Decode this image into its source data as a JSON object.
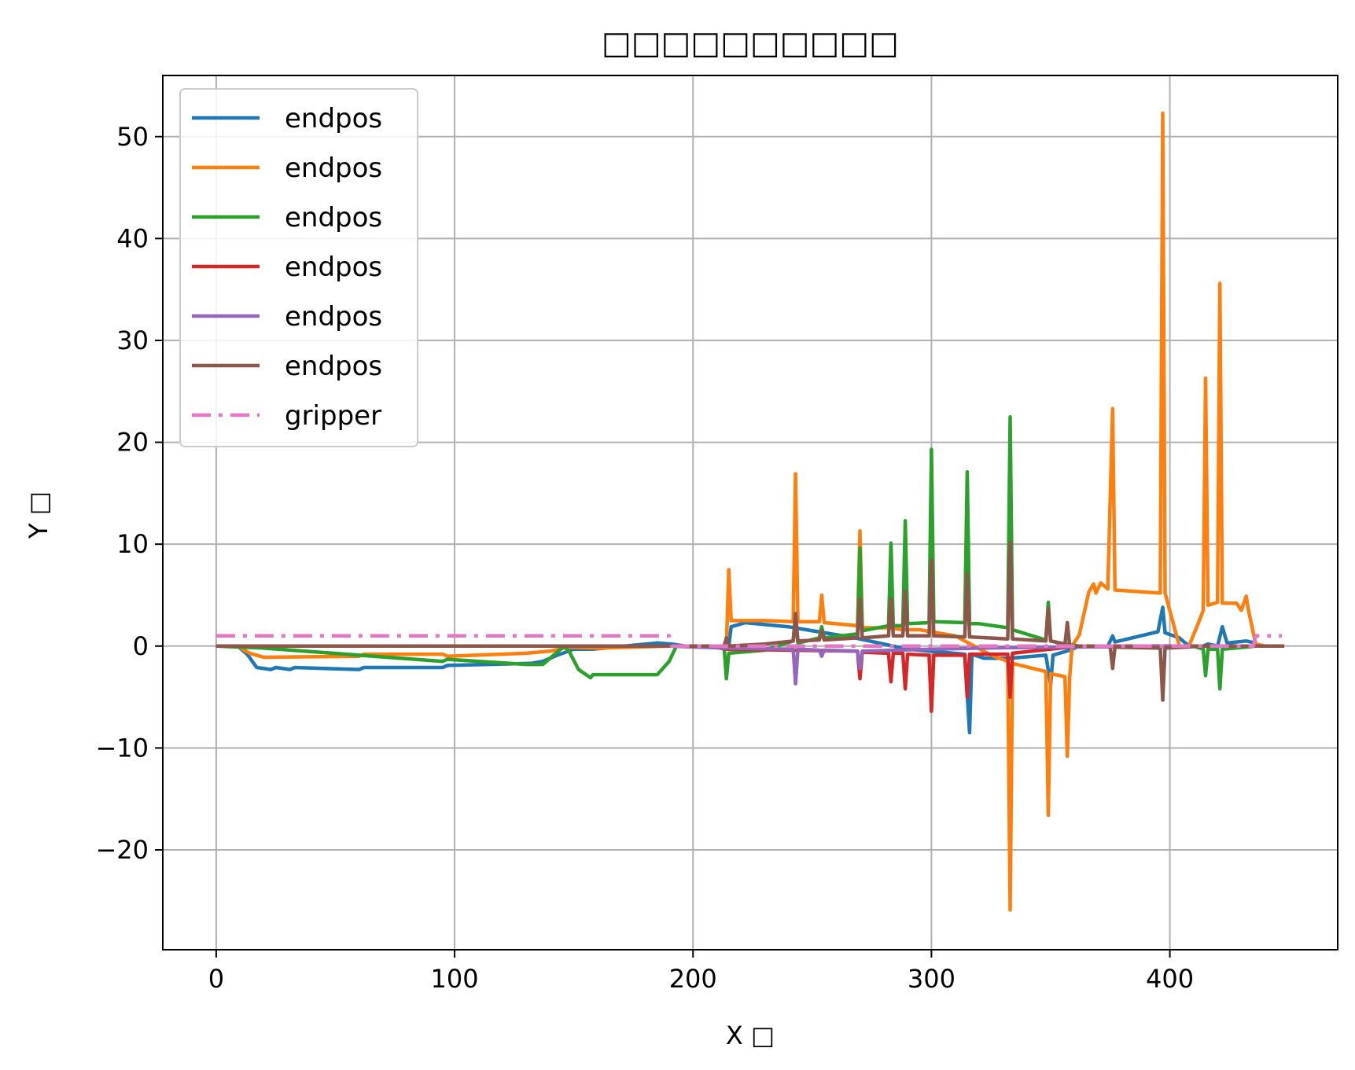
{
  "chart_data": {
    "type": "line",
    "title": "□□□□□□□□□□",
    "xlabel": "X □",
    "ylabel": "Y □",
    "xlim": [
      -22.4,
      470.4
    ],
    "ylim": [
      -29.8,
      56.0
    ],
    "xticks": [
      0,
      100,
      200,
      300,
      400
    ],
    "yticks": [
      -20,
      -10,
      0,
      10,
      20,
      30,
      40,
      50
    ],
    "xtick_labels": [
      "0",
      "100",
      "200",
      "300",
      "400"
    ],
    "ytick_labels": [
      "−20",
      "−10",
      "0",
      "10",
      "20",
      "30",
      "40",
      "50"
    ],
    "grid": true,
    "legend_position": "upper-left",
    "series": [
      {
        "name": "endpos",
        "color": "#1f77b4",
        "style": "solid",
        "points": [
          [
            0,
            0
          ],
          [
            9,
            0
          ],
          [
            13,
            -0.8
          ],
          [
            17,
            -2.1
          ],
          [
            23,
            -2.3
          ],
          [
            25,
            -2.1
          ],
          [
            31,
            -2.3
          ],
          [
            33,
            -2.1
          ],
          [
            60,
            -2.3
          ],
          [
            62,
            -2.1
          ],
          [
            95,
            -2.1
          ],
          [
            97,
            -1.9
          ],
          [
            132,
            -1.7
          ],
          [
            137,
            -1.5
          ],
          [
            142,
            -1.0
          ],
          [
            150,
            -0.3
          ],
          [
            158,
            -0.3
          ],
          [
            185,
            0.3
          ],
          [
            191,
            0.2
          ],
          [
            197,
            0
          ],
          [
            215,
            0
          ],
          [
            216,
            1.9
          ],
          [
            222,
            2.3
          ],
          [
            240,
            1.9
          ],
          [
            268,
            0.8
          ],
          [
            290,
            -0.3
          ],
          [
            314,
            -0.8
          ],
          [
            316,
            -8.5
          ],
          [
            317,
            -0.8
          ],
          [
            322,
            -1.2
          ],
          [
            333,
            -1.2
          ],
          [
            348,
            -0.9
          ],
          [
            350,
            -3.8
          ],
          [
            351,
            -0.9
          ],
          [
            358,
            -0.4
          ],
          [
            362,
            0
          ],
          [
            374,
            0
          ],
          [
            376,
            1.0
          ],
          [
            377,
            0.4
          ],
          [
            395,
            1.4
          ],
          [
            397,
            3.8
          ],
          [
            398,
            1.3
          ],
          [
            404,
            0.8
          ],
          [
            408,
            0
          ],
          [
            414,
            0
          ],
          [
            416,
            0.2
          ],
          [
            420,
            0
          ],
          [
            422,
            1.9
          ],
          [
            424,
            0.3
          ],
          [
            432,
            0.5
          ],
          [
            436,
            0.3
          ]
        ]
      },
      {
        "name": "endpos",
        "color": "#ff7f0e",
        "style": "solid",
        "points": [
          [
            0,
            0
          ],
          [
            9,
            0
          ],
          [
            14,
            -0.7
          ],
          [
            20,
            -1.1
          ],
          [
            60,
            -1.0
          ],
          [
            62,
            -0.8
          ],
          [
            95,
            -0.8
          ],
          [
            97,
            -1.0
          ],
          [
            130,
            -0.7
          ],
          [
            140,
            -0.5
          ],
          [
            148,
            -0.1
          ],
          [
            160,
            -0.2
          ],
          [
            190,
            0
          ],
          [
            207,
            0
          ],
          [
            214,
            0
          ],
          [
            215,
            7.5
          ],
          [
            216,
            2.5
          ],
          [
            230,
            2.5
          ],
          [
            242,
            2.4
          ],
          [
            243,
            16.9
          ],
          [
            244,
            2.4
          ],
          [
            253,
            2.4
          ],
          [
            254,
            5.0
          ],
          [
            255,
            2.3
          ],
          [
            269,
            2.0
          ],
          [
            270,
            11.3
          ],
          [
            271,
            1.8
          ],
          [
            276,
            1.8
          ],
          [
            282,
            1.8
          ],
          [
            288,
            1.6
          ],
          [
            295,
            1.6
          ],
          [
            310,
            1.0
          ],
          [
            318,
            0
          ],
          [
            325,
            -0.9
          ],
          [
            332,
            -1.5
          ],
          [
            333,
            -25.9
          ],
          [
            334,
            -1.7
          ],
          [
            348,
            -2.5
          ],
          [
            349,
            -16.6
          ],
          [
            350,
            -2.7
          ],
          [
            356,
            -3.0
          ],
          [
            357,
            -10.8
          ],
          [
            358,
            -3.0
          ],
          [
            359,
            0
          ],
          [
            362,
            1.1
          ],
          [
            366,
            5.3
          ],
          [
            368,
            6.1
          ],
          [
            369,
            5.2
          ],
          [
            371,
            6.2
          ],
          [
            374,
            5.6
          ],
          [
            376,
            23.3
          ],
          [
            377,
            5.5
          ],
          [
            396,
            5.2
          ],
          [
            397,
            52.3
          ],
          [
            398,
            5.2
          ],
          [
            404,
            0
          ],
          [
            408,
            0
          ],
          [
            412,
            2.3
          ],
          [
            414,
            3.5
          ],
          [
            415,
            26.3
          ],
          [
            416,
            4.0
          ],
          [
            420,
            4.3
          ],
          [
            421,
            35.6
          ],
          [
            422,
            4.2
          ],
          [
            428,
            4.2
          ],
          [
            430,
            3.5
          ],
          [
            432,
            4.9
          ],
          [
            433,
            3.5
          ],
          [
            436,
            0.2
          ],
          [
            440,
            0
          ]
        ]
      },
      {
        "name": "endpos",
        "color": "#2ca02c",
        "style": "solid",
        "points": [
          [
            0,
            0
          ],
          [
            20,
            -0.2
          ],
          [
            60,
            -0.9
          ],
          [
            95,
            -1.5
          ],
          [
            97,
            -1.3
          ],
          [
            130,
            -1.8
          ],
          [
            137,
            -1.8
          ],
          [
            143,
            -0.6
          ],
          [
            146,
            0
          ],
          [
            148,
            -0.5
          ],
          [
            152,
            -2.3
          ],
          [
            157,
            -3.1
          ],
          [
            158,
            -2.8
          ],
          [
            185,
            -2.8
          ],
          [
            190,
            -1.5
          ],
          [
            193,
            0
          ],
          [
            197,
            0
          ],
          [
            213,
            0
          ],
          [
            214,
            -3.2
          ],
          [
            215,
            -0.7
          ],
          [
            230,
            -0.4
          ],
          [
            242,
            0.5
          ],
          [
            243,
            2.7
          ],
          [
            244,
            0.3
          ],
          [
            253,
            0.8
          ],
          [
            254,
            1.9
          ],
          [
            255,
            0.8
          ],
          [
            269,
            1.2
          ],
          [
            270,
            9.6
          ],
          [
            271,
            1.5
          ],
          [
            282,
            2.0
          ],
          [
            283,
            10.1
          ],
          [
            284,
            2.0
          ],
          [
            288,
            2.0
          ],
          [
            289,
            12.3
          ],
          [
            290,
            2.2
          ],
          [
            299,
            2.3
          ],
          [
            300,
            19.3
          ],
          [
            301,
            2.4
          ],
          [
            314,
            2.3
          ],
          [
            315,
            17.1
          ],
          [
            316,
            2.2
          ],
          [
            320,
            2.2
          ],
          [
            332,
            1.8
          ],
          [
            333,
            22.5
          ],
          [
            334,
            1.6
          ],
          [
            348,
            0.6
          ],
          [
            349,
            4.3
          ],
          [
            350,
            0.5
          ],
          [
            356,
            0.2
          ],
          [
            362,
            0
          ],
          [
            410,
            0
          ],
          [
            414,
            -0.3
          ],
          [
            415,
            -2.9
          ],
          [
            416,
            -0.3
          ],
          [
            420,
            -0.3
          ],
          [
            421,
            -4.2
          ],
          [
            422,
            -0.3
          ],
          [
            432,
            -0.1
          ],
          [
            436,
            0
          ]
        ]
      },
      {
        "name": "endpos",
        "color": "#d62728",
        "style": "solid",
        "points": [
          [
            0,
            0
          ],
          [
            190,
            0
          ],
          [
            206,
            0
          ],
          [
            214,
            -0.3
          ],
          [
            242,
            -0.4
          ],
          [
            269,
            -0.5
          ],
          [
            270,
            -3.2
          ],
          [
            271,
            -0.6
          ],
          [
            282,
            -0.7
          ],
          [
            283,
            -3.5
          ],
          [
            284,
            -0.7
          ],
          [
            288,
            -0.7
          ],
          [
            289,
            -4.2
          ],
          [
            290,
            -0.8
          ],
          [
            299,
            -0.9
          ],
          [
            300,
            -6.4
          ],
          [
            301,
            -0.9
          ],
          [
            314,
            -0.9
          ],
          [
            315,
            -5.0
          ],
          [
            316,
            -0.8
          ],
          [
            332,
            -0.8
          ],
          [
            333,
            -5.0
          ],
          [
            334,
            -0.7
          ],
          [
            350,
            -0.3
          ],
          [
            362,
            0
          ],
          [
            436,
            0
          ]
        ]
      },
      {
        "name": "endpos",
        "color": "#9467bd",
        "style": "solid",
        "points": [
          [
            0,
            0
          ],
          [
            190,
            0
          ],
          [
            214,
            -0.2
          ],
          [
            242,
            -0.3
          ],
          [
            243,
            -3.7
          ],
          [
            244,
            -0.3
          ],
          [
            253,
            -0.4
          ],
          [
            254,
            -1.0
          ],
          [
            255,
            -0.4
          ],
          [
            269,
            -0.5
          ],
          [
            270,
            -2.2
          ],
          [
            271,
            -0.5
          ],
          [
            300,
            -0.3
          ],
          [
            320,
            -0.2
          ],
          [
            350,
            -0.1
          ],
          [
            436,
            0
          ]
        ]
      },
      {
        "name": "endpos",
        "color": "#8c564b",
        "style": "solid",
        "points": [
          [
            0,
            0
          ],
          [
            190,
            0
          ],
          [
            205,
            0
          ],
          [
            213,
            0
          ],
          [
            214,
            0.8
          ],
          [
            215,
            0
          ],
          [
            230,
            0.2
          ],
          [
            242,
            0.5
          ],
          [
            243,
            3.2
          ],
          [
            244,
            0.5
          ],
          [
            253,
            0.6
          ],
          [
            254,
            1.5
          ],
          [
            255,
            0.6
          ],
          [
            269,
            0.8
          ],
          [
            270,
            4.6
          ],
          [
            271,
            0.8
          ],
          [
            282,
            1.0
          ],
          [
            283,
            4.6
          ],
          [
            284,
            1.0
          ],
          [
            288,
            1.0
          ],
          [
            289,
            5.4
          ],
          [
            290,
            1.0
          ],
          [
            299,
            1.0
          ],
          [
            300,
            8.4
          ],
          [
            301,
            1.0
          ],
          [
            314,
            0.9
          ],
          [
            315,
            7.1
          ],
          [
            316,
            0.9
          ],
          [
            332,
            0.7
          ],
          [
            333,
            10.2
          ],
          [
            334,
            0.7
          ],
          [
            348,
            0.5
          ],
          [
            349,
            3.7
          ],
          [
            350,
            0.5
          ],
          [
            356,
            0.2
          ],
          [
            357,
            2.3
          ],
          [
            358,
            0
          ],
          [
            374,
            0
          ],
          [
            375,
            -0.1
          ],
          [
            376,
            -2.2
          ],
          [
            377,
            -0.1
          ],
          [
            396,
            -0.2
          ],
          [
            397,
            -5.3
          ],
          [
            398,
            -0.2
          ],
          [
            414,
            0
          ],
          [
            448,
            0
          ]
        ]
      },
      {
        "name": "gripper",
        "color": "#e377c2",
        "style": "dashdot",
        "points": [
          [
            0,
            1
          ],
          [
            190,
            1
          ],
          [
            191,
            0
          ],
          [
            435,
            0
          ],
          [
            436,
            1
          ],
          [
            447,
            1
          ]
        ]
      }
    ]
  }
}
